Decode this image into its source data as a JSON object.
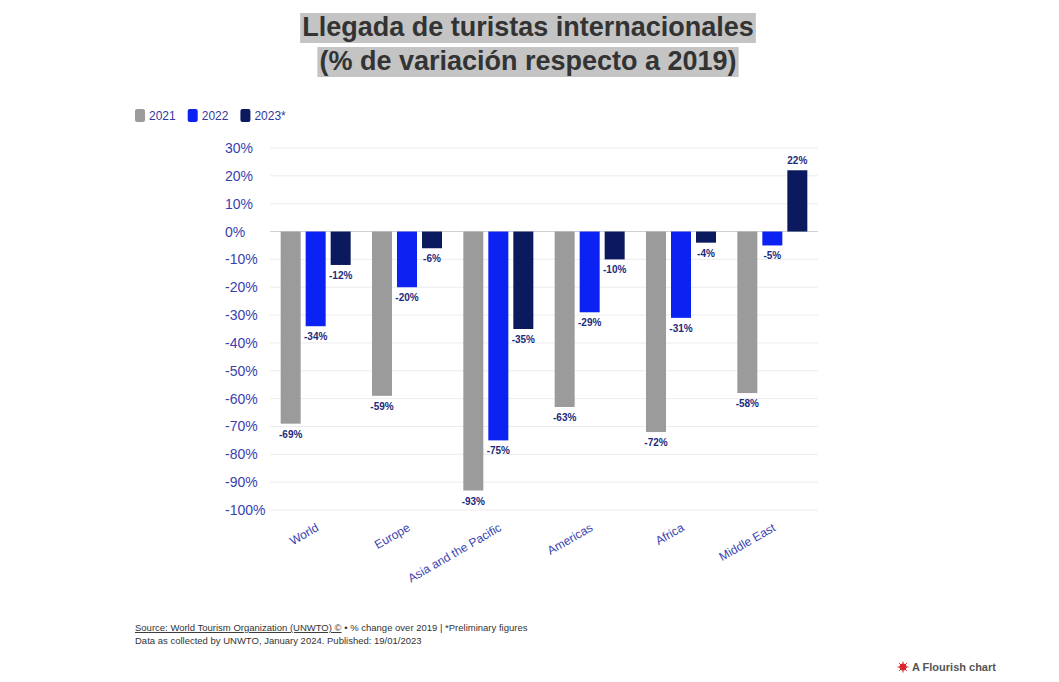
{
  "chart_data": {
    "type": "bar",
    "title": "Llegada de turistas internacionales",
    "subtitle": "(% de variación respecto a 2019)",
    "categories": [
      "World",
      "Europe",
      "Asia and the Pacific",
      "Americas",
      "Africa",
      "Middle East"
    ],
    "series": [
      {
        "name": "2021",
        "color": "#9b9b9b",
        "values": [
          -69,
          -59,
          -93,
          -63,
          -72,
          -58
        ],
        "value_labels": [
          "-69%",
          "-59%",
          "-93%",
          "-63%",
          "-72%",
          "-58%"
        ]
      },
      {
        "name": "2022",
        "color": "#0b22f2",
        "values": [
          -34,
          -20,
          -75,
          -29,
          -31,
          -5
        ],
        "value_labels": [
          "-34%",
          "-20%",
          "-75%",
          "-29%",
          "-31%",
          "-5%"
        ]
      },
      {
        "name": "2023*",
        "color": "#0b1a5e",
        "values": [
          -12,
          -6,
          -35,
          -10,
          -4,
          22
        ],
        "value_labels": [
          "-12%",
          "-6%",
          "-35%",
          "-10%",
          "-4%",
          "22%"
        ]
      }
    ],
    "ylim": [
      -100,
      30
    ],
    "yticks": [
      {
        "value": 30,
        "label": "30%"
      },
      {
        "value": 20,
        "label": "20%"
      },
      {
        "value": 10,
        "label": "10%"
      },
      {
        "value": 0,
        "label": "0%"
      },
      {
        "value": -10,
        "label": "-10%"
      },
      {
        "value": -20,
        "label": "-20%"
      },
      {
        "value": -30,
        "label": "-30%"
      },
      {
        "value": -40,
        "label": "-40%"
      },
      {
        "value": -50,
        "label": "-50%"
      },
      {
        "value": -60,
        "label": "-60%"
      },
      {
        "value": -70,
        "label": "-70%"
      },
      {
        "value": -80,
        "label": "-80%"
      },
      {
        "value": -90,
        "label": "-90%"
      },
      {
        "value": -100,
        "label": "-100%"
      }
    ],
    "grid": true,
    "legend": "top-left",
    "data_labels": true,
    "annotations": [
      "Source: World Tourism Organization (UNWTO) ©",
      " • % change over 2019 | *Preliminary figures",
      "Data as collected by UNWTO, January 2024. Published: 19/01/2023",
      "A Flourish chart"
    ]
  }
}
